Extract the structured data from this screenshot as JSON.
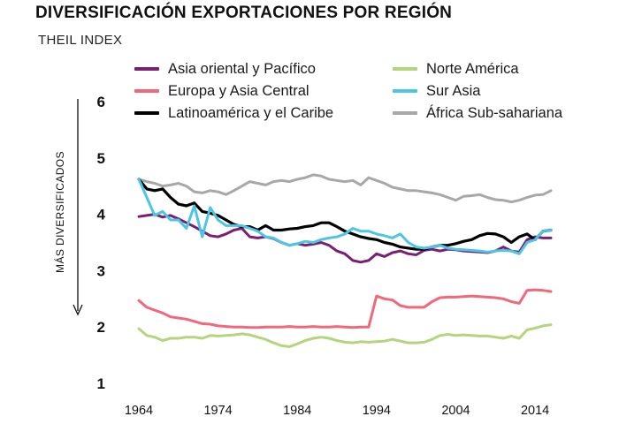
{
  "title": "DIVERSIFICACIÓN EXPORTACIONES POR REGIÓN",
  "subtitle": "THEIL INDEX",
  "chart_data": {
    "type": "line",
    "title": "DIVERSIFICACIÓN EXPORTACIONES POR REGIÓN",
    "subtitle": "THEIL INDEX",
    "xlabel": "",
    "ylabel": "MÁS DIVERSIFICADOS",
    "xlim": [
      1964,
      2016
    ],
    "ylim": [
      1,
      6
    ],
    "x_ticks": [
      "1964",
      "1974",
      "1984",
      "1994",
      "2004",
      "2014"
    ],
    "y_ticks": [
      "1",
      "2",
      "3",
      "4",
      "5",
      "6"
    ],
    "grid": false,
    "legend_position": "top",
    "x": [
      1964,
      1965,
      1966,
      1967,
      1968,
      1969,
      1970,
      1971,
      1972,
      1973,
      1974,
      1975,
      1976,
      1977,
      1978,
      1979,
      1980,
      1981,
      1982,
      1983,
      1984,
      1985,
      1986,
      1987,
      1988,
      1989,
      1990,
      1991,
      1992,
      1993,
      1994,
      1995,
      1996,
      1997,
      1998,
      1999,
      2000,
      2001,
      2002,
      2003,
      2004,
      2005,
      2006,
      2007,
      2008,
      2009,
      2010,
      2011,
      2012,
      2013,
      2014,
      2015,
      2016
    ],
    "series": [
      {
        "name": "Asia oriental y Pacífico",
        "color": "#7b1f73",
        "values": [
          3.96,
          3.98,
          4.0,
          3.95,
          3.98,
          3.92,
          3.85,
          3.78,
          3.7,
          3.62,
          3.6,
          3.65,
          3.72,
          3.75,
          3.6,
          3.58,
          3.6,
          3.57,
          3.5,
          3.45,
          3.48,
          3.45,
          3.47,
          3.5,
          3.45,
          3.35,
          3.3,
          3.18,
          3.15,
          3.18,
          3.3,
          3.25,
          3.32,
          3.35,
          3.3,
          3.28,
          3.36,
          3.38,
          3.35,
          3.38,
          3.37,
          3.35,
          3.34,
          3.33,
          3.32,
          3.35,
          3.42,
          3.35,
          3.33,
          3.55,
          3.6,
          3.58,
          3.58
        ]
      },
      {
        "name": "Europa y Asia Central",
        "color": "#f2687a",
        "values": [
          2.47,
          2.35,
          2.3,
          2.25,
          2.18,
          2.16,
          2.14,
          2.1,
          2.06,
          2.05,
          2.02,
          2.01,
          2.0,
          2.0,
          1.99,
          1.99,
          2.0,
          2.0,
          2.0,
          2.01,
          2.0,
          2.0,
          2.01,
          2.0,
          2.0,
          2.01,
          2.0,
          1.99,
          2.0,
          2.0,
          2.55,
          2.5,
          2.48,
          2.38,
          2.35,
          2.35,
          2.35,
          2.45,
          2.52,
          2.53,
          2.53,
          2.54,
          2.55,
          2.54,
          2.53,
          2.52,
          2.5,
          2.45,
          2.42,
          2.65,
          2.66,
          2.65,
          2.63
        ]
      },
      {
        "name": "Latinoamérica y el Caribe",
        "color": "#000000",
        "values": [
          4.62,
          4.45,
          4.42,
          4.45,
          4.3,
          4.18,
          4.15,
          4.2,
          4.05,
          4.02,
          3.98,
          3.9,
          3.82,
          3.78,
          3.78,
          3.72,
          3.8,
          3.72,
          3.72,
          3.74,
          3.75,
          3.78,
          3.8,
          3.85,
          3.85,
          3.78,
          3.7,
          3.65,
          3.6,
          3.57,
          3.55,
          3.5,
          3.47,
          3.42,
          3.4,
          3.38,
          3.38,
          3.42,
          3.45,
          3.45,
          3.48,
          3.52,
          3.55,
          3.62,
          3.66,
          3.65,
          3.6,
          3.5,
          3.6,
          3.65,
          3.55,
          3.7,
          3.72
        ]
      },
      {
        "name": "Norte América",
        "color": "#b5d47e",
        "values": [
          1.97,
          1.85,
          1.82,
          1.76,
          1.8,
          1.8,
          1.82,
          1.82,
          1.8,
          1.85,
          1.84,
          1.85,
          1.86,
          1.88,
          1.86,
          1.82,
          1.78,
          1.72,
          1.67,
          1.65,
          1.7,
          1.76,
          1.8,
          1.82,
          1.8,
          1.76,
          1.73,
          1.72,
          1.74,
          1.73,
          1.74,
          1.75,
          1.78,
          1.75,
          1.72,
          1.72,
          1.73,
          1.78,
          1.85,
          1.87,
          1.85,
          1.86,
          1.85,
          1.84,
          1.84,
          1.82,
          1.8,
          1.84,
          1.8,
          1.95,
          1.98,
          2.02,
          2.04
        ]
      },
      {
        "name": "Sur Asia",
        "color": "#4dc6e6",
        "values": [
          4.62,
          4.3,
          3.98,
          4.05,
          3.9,
          3.9,
          3.75,
          4.15,
          3.6,
          4.12,
          3.9,
          3.8,
          3.8,
          3.8,
          3.75,
          3.7,
          3.6,
          3.58,
          3.5,
          3.45,
          3.48,
          3.52,
          3.5,
          3.55,
          3.58,
          3.6,
          3.65,
          3.75,
          3.7,
          3.7,
          3.65,
          3.62,
          3.58,
          3.65,
          3.5,
          3.42,
          3.4,
          3.42,
          3.45,
          3.4,
          3.38,
          3.37,
          3.36,
          3.35,
          3.33,
          3.35,
          3.36,
          3.35,
          3.3,
          3.5,
          3.55,
          3.7,
          3.72
        ]
      },
      {
        "name": "África Sub-sahariana",
        "color": "#a8a8a8",
        "values": [
          4.62,
          4.58,
          4.55,
          4.5,
          4.52,
          4.55,
          4.5,
          4.4,
          4.38,
          4.42,
          4.4,
          4.35,
          4.42,
          4.5,
          4.58,
          4.55,
          4.52,
          4.58,
          4.6,
          4.58,
          4.62,
          4.65,
          4.7,
          4.68,
          4.62,
          4.6,
          4.58,
          4.6,
          4.52,
          4.65,
          4.6,
          4.55,
          4.48,
          4.45,
          4.42,
          4.42,
          4.4,
          4.38,
          4.35,
          4.3,
          4.25,
          4.32,
          4.33,
          4.35,
          4.3,
          4.26,
          4.25,
          4.22,
          4.25,
          4.3,
          4.34,
          4.35,
          4.42
        ]
      }
    ]
  }
}
